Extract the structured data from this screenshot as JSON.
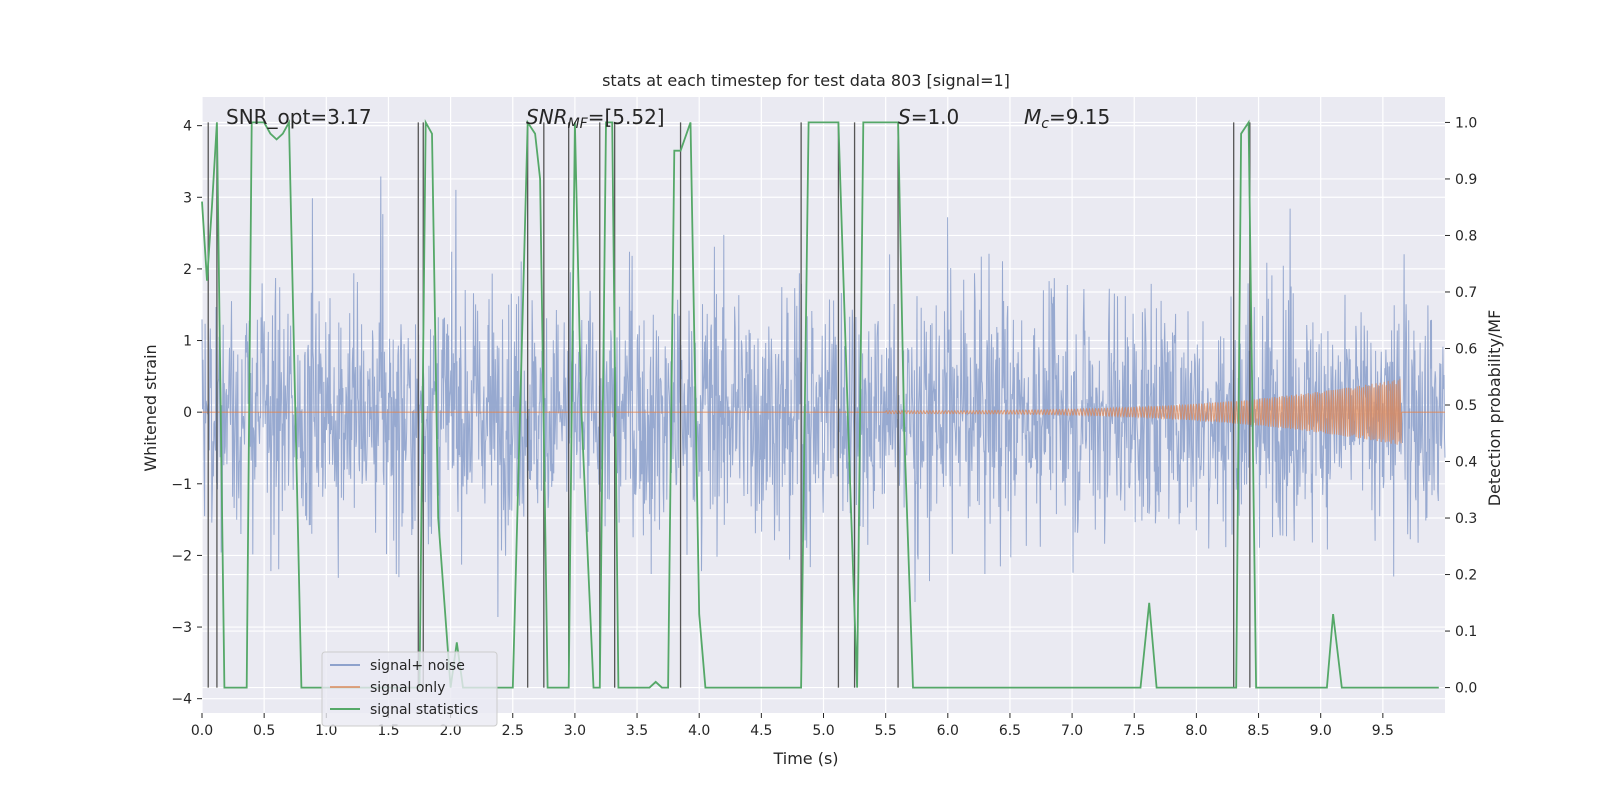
{
  "chart_data": {
    "type": "line",
    "title": "stats at each timestep for test data 803 [signal=1]",
    "xlabel": "Time (s)",
    "ylabel": "Whitened strain",
    "ylabel_right": "Detection probability/MF",
    "xlim": [
      0,
      10
    ],
    "ylim": [
      -4.2,
      4.4
    ],
    "ylim_right": [
      -0.045,
      1.045
    ],
    "xticks": [
      "0.0",
      "0.5",
      "1.0",
      "1.5",
      "2.0",
      "2.5",
      "3.0",
      "3.5",
      "4.0",
      "4.5",
      "5.0",
      "5.5",
      "6.0",
      "6.5",
      "7.0",
      "7.5",
      "8.0",
      "8.5",
      "9.0",
      "9.5"
    ],
    "yticks_left": [
      "4",
      "3",
      "2",
      "1",
      "0",
      "−1",
      "−2",
      "−3",
      "−4"
    ],
    "yticks_right": [
      "1.0",
      "0.9",
      "0.8",
      "0.7",
      "0.6",
      "0.5",
      "0.4",
      "0.3",
      "0.2",
      "0.1",
      "0.0"
    ],
    "annotations": [
      {
        "text": "SNR_opt=3.17",
        "x": 0.2
      },
      {
        "text": "SNRMF=[5.52]",
        "x": 2.6
      },
      {
        "text": "S=1.0",
        "x": 5.6
      },
      {
        "text": "Mc=9.15",
        "x": 6.6
      }
    ],
    "legend_position": "lower-left",
    "legend": [
      {
        "label": "signal+ noise",
        "color": "#8ea2cc"
      },
      {
        "label": "signal only",
        "color": "#dd8452"
      },
      {
        "label": "signal statistics",
        "color": "#55a868"
      }
    ],
    "series": [
      {
        "name": "signal+ noise",
        "axis": "left",
        "color": "#8ea2cc",
        "description_values": "whitened strain noise, roughly within ±2.5, peaks to ±3.5",
        "envelope": {
          "typical": 2.0,
          "peak": 3.5
        }
      },
      {
        "name": "signal only",
        "axis": "left",
        "color": "#dd8452",
        "chirp": {
          "start_x": 5.5,
          "end_x": 9.65,
          "peak_amplitude": 0.45
        }
      },
      {
        "name": "signal statistics",
        "axis": "right",
        "color": "#55a868",
        "x": [
          0.0,
          0.04,
          0.08,
          0.12,
          0.18,
          0.3,
          0.36,
          0.4,
          0.45,
          0.5,
          0.55,
          0.6,
          0.65,
          0.7,
          0.8,
          0.85,
          1.0,
          1.5,
          1.75,
          1.8,
          1.85,
          1.9,
          2.0,
          2.05,
          2.1,
          2.2,
          2.5,
          2.62,
          2.68,
          2.72,
          2.78,
          2.85,
          2.95,
          3.0,
          3.05,
          3.15,
          3.2,
          3.25,
          3.3,
          3.35,
          3.4,
          3.5,
          3.6,
          3.65,
          3.7,
          3.75,
          3.8,
          3.85,
          3.93,
          4.0,
          4.05,
          4.2,
          4.5,
          4.82,
          4.88,
          5.0,
          5.12,
          5.2,
          5.27,
          5.32,
          5.4,
          5.6,
          5.65,
          5.72,
          5.8,
          6.5,
          7.0,
          7.5,
          7.55,
          7.62,
          7.68,
          8.0,
          8.32,
          8.36,
          8.42,
          8.48,
          8.5,
          9.0,
          9.05,
          9.1,
          9.17,
          9.5,
          9.95
        ],
        "y": [
          0.86,
          0.72,
          0.85,
          1.0,
          0.0,
          0.0,
          0.0,
          1.0,
          1.0,
          1.0,
          0.98,
          0.97,
          0.98,
          1.0,
          0.0,
          0.0,
          0.0,
          0.0,
          0.0,
          1.0,
          0.98,
          0.3,
          0.0,
          0.08,
          0.0,
          0.0,
          0.0,
          1.0,
          0.98,
          0.9,
          0.0,
          0.0,
          0.0,
          1.0,
          0.5,
          0.0,
          0.0,
          1.0,
          1.0,
          0.0,
          0.0,
          0.0,
          0.0,
          0.01,
          0.0,
          0.0,
          0.95,
          0.95,
          1.0,
          0.13,
          0.0,
          0.0,
          0.0,
          0.0,
          1.0,
          1.0,
          1.0,
          0.45,
          0.0,
          1.0,
          1.0,
          1.0,
          0.45,
          0.0,
          0.0,
          0.0,
          0.0,
          0.0,
          0.0,
          0.15,
          0.0,
          0.0,
          0.0,
          0.98,
          1.0,
          0.0,
          0.0,
          0.0,
          0.0,
          0.13,
          0.0,
          0.0,
          0.0
        ]
      }
    ],
    "vlines": [
      0.05,
      0.12,
      1.74,
      1.78,
      2.62,
      2.75,
      2.95,
      3.2,
      3.32,
      3.85,
      4.82,
      5.12,
      5.25,
      5.6,
      8.3,
      8.43
    ]
  }
}
